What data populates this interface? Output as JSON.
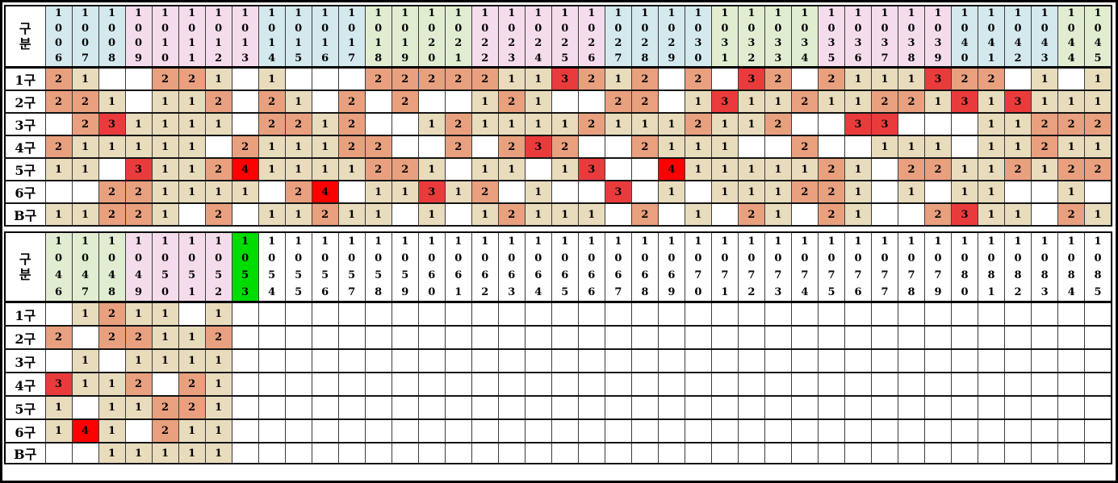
{
  "meta": {
    "corner_label": "구분",
    "row_labels": [
      "1구",
      "2구",
      "3구",
      "4구",
      "5구",
      "6구",
      "B구"
    ]
  },
  "colors": {
    "value_fills": {
      "0": "#ffffff",
      "1": "#e8dcbc",
      "2": "#e9a07e",
      "3": "#ea3b3c",
      "4": "#ff0000"
    },
    "header_fills": {
      "cyan": "#d3e9ed",
      "pink": "#f5dcec",
      "green": "#e1edd1",
      "bright": "#00dc00",
      "white": "#ffffff"
    },
    "text": "#000000"
  },
  "top_table": {
    "column_numbers": [
      "1006",
      "1007",
      "1008",
      "1009",
      "1010",
      "1011",
      "1012",
      "1013",
      "1014",
      "1015",
      "1016",
      "1017",
      "1018",
      "1019",
      "1020",
      "1021",
      "1022",
      "1023",
      "1024",
      "1025",
      "1026",
      "1027",
      "1028",
      "1029",
      "1030",
      "1031",
      "1032",
      "1033",
      "1034",
      "1035",
      "1036",
      "1037",
      "1038",
      "1039",
      "1040",
      "1041",
      "1042",
      "1043",
      "1044",
      "1045"
    ],
    "column_fills": [
      "cyan",
      "cyan",
      "cyan",
      "pink",
      "pink",
      "pink",
      "pink",
      "pink",
      "cyan",
      "cyan",
      "cyan",
      "cyan",
      "green",
      "green",
      "green",
      "green",
      "pink",
      "pink",
      "pink",
      "pink",
      "pink",
      "cyan",
      "cyan",
      "cyan",
      "cyan",
      "green",
      "green",
      "green",
      "green",
      "pink",
      "pink",
      "pink",
      "pink",
      "pink",
      "cyan",
      "cyan",
      "cyan",
      "cyan",
      "green",
      "green"
    ],
    "rows": [
      {
        "label": "1구",
        "cells": [
          2,
          1,
          0,
          0,
          2,
          2,
          1,
          0,
          1,
          0,
          0,
          0,
          2,
          2,
          2,
          2,
          2,
          1,
          1,
          3,
          2,
          1,
          2,
          0,
          2,
          0,
          3,
          2,
          0,
          2,
          1,
          1,
          1,
          3,
          2,
          2,
          0,
          1,
          0,
          1
        ]
      },
      {
        "label": "2구",
        "cells": [
          2,
          2,
          1,
          0,
          1,
          1,
          2,
          0,
          2,
          1,
          0,
          2,
          0,
          2,
          0,
          0,
          1,
          2,
          1,
          0,
          0,
          2,
          2,
          0,
          1,
          3,
          1,
          1,
          2,
          1,
          1,
          2,
          2,
          1,
          3,
          1,
          3,
          1,
          1,
          1
        ]
      },
      {
        "label": "3구",
        "cells": [
          0,
          2,
          3,
          1,
          1,
          1,
          1,
          0,
          2,
          2,
          1,
          2,
          0,
          0,
          1,
          2,
          1,
          1,
          1,
          1,
          2,
          1,
          1,
          1,
          2,
          1,
          1,
          2,
          0,
          0,
          3,
          3,
          0,
          0,
          0,
          1,
          1,
          2,
          2,
          2
        ]
      },
      {
        "label": "4구",
        "cells": [
          2,
          1,
          1,
          1,
          1,
          1,
          0,
          2,
          1,
          1,
          1,
          2,
          2,
          0,
          0,
          2,
          0,
          2,
          3,
          2,
          0,
          0,
          2,
          1,
          1,
          1,
          0,
          0,
          2,
          0,
          0,
          1,
          1,
          1,
          0,
          1,
          1,
          2,
          1,
          1
        ]
      },
      {
        "label": "5구",
        "cells": [
          1,
          1,
          0,
          3,
          1,
          1,
          2,
          4,
          1,
          1,
          1,
          1,
          2,
          2,
          1,
          0,
          1,
          1,
          0,
          1,
          3,
          0,
          0,
          4,
          1,
          1,
          1,
          1,
          1,
          2,
          1,
          0,
          2,
          2,
          1,
          1,
          2,
          1,
          2,
          2
        ]
      },
      {
        "label": "6구",
        "cells": [
          0,
          0,
          2,
          2,
          1,
          1,
          1,
          1,
          0,
          2,
          4,
          0,
          1,
          1,
          3,
          1,
          2,
          0,
          1,
          0,
          0,
          3,
          0,
          1,
          0,
          1,
          1,
          1,
          2,
          2,
          1,
          0,
          1,
          0,
          1,
          1,
          0,
          0,
          1,
          0
        ]
      },
      {
        "label": "B구",
        "cells": [
          1,
          1,
          2,
          2,
          1,
          0,
          2,
          0,
          1,
          1,
          2,
          1,
          1,
          0,
          1,
          0,
          1,
          2,
          1,
          1,
          1,
          0,
          2,
          0,
          1,
          0,
          2,
          1,
          0,
          2,
          1,
          0,
          0,
          2,
          3,
          1,
          1,
          0,
          2,
          1
        ]
      }
    ]
  },
  "bottom_table": {
    "column_numbers": [
      "1046",
      "1047",
      "1048",
      "1049",
      "1050",
      "1051",
      "1052",
      "1053",
      "1054",
      "1055",
      "1056",
      "1057",
      "1058",
      "1059",
      "1060",
      "1061",
      "1062",
      "1063",
      "1064",
      "1065",
      "1066",
      "1067",
      "1068",
      "1069",
      "1070",
      "1071",
      "1072",
      "1073",
      "1074",
      "1075",
      "1076",
      "1077",
      "1078",
      "1079",
      "1080",
      "1081",
      "1082",
      "1083",
      "1084",
      "1085"
    ],
    "column_fills": [
      "green",
      "green",
      "green",
      "pink",
      "pink",
      "pink",
      "pink",
      "bright",
      "white",
      "white",
      "white",
      "white",
      "white",
      "white",
      "white",
      "white",
      "white",
      "white",
      "white",
      "white",
      "white",
      "white",
      "white",
      "white",
      "white",
      "white",
      "white",
      "white",
      "white",
      "white",
      "white",
      "white",
      "white",
      "white",
      "white",
      "white",
      "white",
      "white",
      "white",
      "white"
    ],
    "rows": [
      {
        "label": "1구",
        "cells": [
          0,
          1,
          2,
          1,
          1,
          0,
          1,
          0,
          0,
          0,
          0,
          0,
          0,
          0,
          0,
          0,
          0,
          0,
          0,
          0,
          0,
          0,
          0,
          0,
          0,
          0,
          0,
          0,
          0,
          0,
          0,
          0,
          0,
          0,
          0,
          0,
          0,
          0,
          0,
          0
        ]
      },
      {
        "label": "2구",
        "cells": [
          2,
          0,
          2,
          2,
          1,
          1,
          2,
          0,
          0,
          0,
          0,
          0,
          0,
          0,
          0,
          0,
          0,
          0,
          0,
          0,
          0,
          0,
          0,
          0,
          0,
          0,
          0,
          0,
          0,
          0,
          0,
          0,
          0,
          0,
          0,
          0,
          0,
          0,
          0,
          0
        ]
      },
      {
        "label": "3구",
        "cells": [
          0,
          1,
          0,
          1,
          1,
          1,
          1,
          0,
          0,
          0,
          0,
          0,
          0,
          0,
          0,
          0,
          0,
          0,
          0,
          0,
          0,
          0,
          0,
          0,
          0,
          0,
          0,
          0,
          0,
          0,
          0,
          0,
          0,
          0,
          0,
          0,
          0,
          0,
          0,
          0
        ]
      },
      {
        "label": "4구",
        "cells": [
          3,
          1,
          1,
          2,
          0,
          2,
          1,
          0,
          0,
          0,
          0,
          0,
          0,
          0,
          0,
          0,
          0,
          0,
          0,
          0,
          0,
          0,
          0,
          0,
          0,
          0,
          0,
          0,
          0,
          0,
          0,
          0,
          0,
          0,
          0,
          0,
          0,
          0,
          0,
          0
        ]
      },
      {
        "label": "5구",
        "cells": [
          1,
          0,
          1,
          1,
          2,
          2,
          1,
          0,
          0,
          0,
          0,
          0,
          0,
          0,
          0,
          0,
          0,
          0,
          0,
          0,
          0,
          0,
          0,
          0,
          0,
          0,
          0,
          0,
          0,
          0,
          0,
          0,
          0,
          0,
          0,
          0,
          0,
          0,
          0,
          0
        ]
      },
      {
        "label": "6구",
        "cells": [
          1,
          4,
          1,
          0,
          2,
          1,
          1,
          0,
          0,
          0,
          0,
          0,
          0,
          0,
          0,
          0,
          0,
          0,
          0,
          0,
          0,
          0,
          0,
          0,
          0,
          0,
          0,
          0,
          0,
          0,
          0,
          0,
          0,
          0,
          0,
          0,
          0,
          0,
          0,
          0
        ]
      },
      {
        "label": "B구",
        "cells": [
          0,
          0,
          1,
          1,
          1,
          1,
          1,
          0,
          0,
          0,
          0,
          0,
          0,
          0,
          0,
          0,
          0,
          0,
          0,
          0,
          0,
          0,
          0,
          0,
          0,
          0,
          0,
          0,
          0,
          0,
          0,
          0,
          0,
          0,
          0,
          0,
          0,
          0,
          0,
          0
        ]
      }
    ]
  }
}
